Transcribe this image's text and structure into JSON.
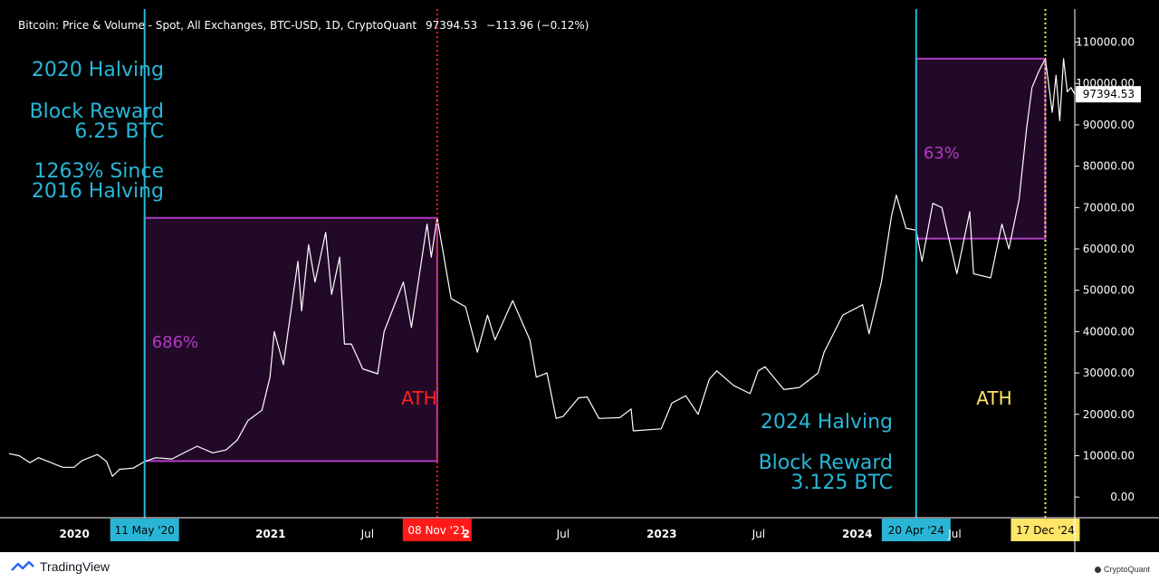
{
  "header": {
    "symbol": "Bitcoin: Price & Volume - Spot, All Exchanges, BTC-USD, 1D, CryptoQuant",
    "last": "97394.53",
    "change": "−113.96 (−0.12%)"
  },
  "chart_data": {
    "type": "line",
    "x_range": [
      "2019-09-01",
      "2025-02-10"
    ],
    "y_range": [
      -5000,
      118000
    ],
    "y_ticks": [
      {
        "value": 0,
        "label": "0.00"
      },
      {
        "value": 10000,
        "label": "10000.00"
      },
      {
        "value": 20000,
        "label": "20000.00"
      },
      {
        "value": 30000,
        "label": "30000.00"
      },
      {
        "value": 40000,
        "label": "40000.00"
      },
      {
        "value": 50000,
        "label": "50000.00"
      },
      {
        "value": 60000,
        "label": "60000.00"
      },
      {
        "value": 70000,
        "label": "70000.00"
      },
      {
        "value": 80000,
        "label": "80000.00"
      },
      {
        "value": 90000,
        "label": "90000.00"
      },
      {
        "value": 100000,
        "label": "100000.00"
      },
      {
        "value": 110000,
        "label": "110000.00"
      }
    ],
    "x_ticks": [
      {
        "date": "2020-01-01",
        "label": "2020",
        "bold": true
      },
      {
        "date": "2021-01-01",
        "label": "2021",
        "bold": true
      },
      {
        "date": "2021-07-01",
        "label": "Jul",
        "bold": false
      },
      {
        "date": "2022-01-01",
        "label": "2",
        "bold": true
      },
      {
        "date": "2022-07-01",
        "label": "Jul",
        "bold": false
      },
      {
        "date": "2023-01-01",
        "label": "2023",
        "bold": true
      },
      {
        "date": "2023-07-01",
        "label": "Jul",
        "bold": false
      },
      {
        "date": "2024-01-01",
        "label": "2024",
        "bold": true
      },
      {
        "date": "2024-07-01",
        "label": "Jul",
        "bold": false
      }
    ],
    "price_label": "97394.53",
    "price_value": 97394.53,
    "markers": [
      {
        "date": "2020-05-11",
        "label": "11 May '20",
        "color": "#29b6d6",
        "style": "solid"
      },
      {
        "date": "2021-11-08",
        "label": "08 Nov '21",
        "color": "#ff1a1a",
        "style": "dotted"
      },
      {
        "date": "2024-04-20",
        "label": "20 Apr '24",
        "color": "#29b6d6",
        "style": "solid"
      },
      {
        "date": "2024-12-17",
        "label": "17 Dec '24",
        "color": "#ffe566",
        "style": "dotted"
      }
    ],
    "ranges": [
      {
        "x0": "2020-05-11",
        "x1": "2021-11-08",
        "y0": 8700,
        "y1": 67500,
        "label": "686%"
      },
      {
        "x0": "2024-04-20",
        "x1": "2024-12-17",
        "y0": 62500,
        "y1": 106000,
        "label": "63%"
      }
    ],
    "annotations": [
      {
        "id": "h2020-title",
        "text": "2020 Halving",
        "color": "#29b6d6"
      },
      {
        "id": "h2020-reward1",
        "text": "Block Reward",
        "color": "#29b6d6"
      },
      {
        "id": "h2020-reward2",
        "text": "6.25 BTC",
        "color": "#29b6d6"
      },
      {
        "id": "h2020-since1",
        "text": "1263% Since",
        "color": "#29b6d6"
      },
      {
        "id": "h2020-since2",
        "text": "2016 Halving",
        "color": "#29b6d6"
      },
      {
        "id": "ath-2021",
        "text": "ATH",
        "color": "#ff2020"
      },
      {
        "id": "h2024-title",
        "text": "2024 Halving",
        "color": "#29b6d6"
      },
      {
        "id": "h2024-reward1",
        "text": "Block Reward",
        "color": "#29b6d6"
      },
      {
        "id": "h2024-reward2",
        "text": "3.125 BTC",
        "color": "#29b6d6"
      },
      {
        "id": "ath-2024",
        "text": "ATH",
        "color": "#ffe566"
      }
    ],
    "series": [
      {
        "values": [
          [
            "2019-09-01",
            10500
          ],
          [
            "2019-09-20",
            10000
          ],
          [
            "2019-10-10",
            8300
          ],
          [
            "2019-10-26",
            9500
          ],
          [
            "2019-11-15",
            8500
          ],
          [
            "2019-12-10",
            7200
          ],
          [
            "2019-12-31",
            7200
          ],
          [
            "2020-01-15",
            8800
          ],
          [
            "2020-02-13",
            10300
          ],
          [
            "2020-03-01",
            8600
          ],
          [
            "2020-03-12",
            5000
          ],
          [
            "2020-03-25",
            6700
          ],
          [
            "2020-04-20",
            7000
          ],
          [
            "2020-05-11",
            8600
          ],
          [
            "2020-06-01",
            9500
          ],
          [
            "2020-07-01",
            9200
          ],
          [
            "2020-07-28",
            11000
          ],
          [
            "2020-08-17",
            12300
          ],
          [
            "2020-09-15",
            10700
          ],
          [
            "2020-10-10",
            11400
          ],
          [
            "2020-10-31",
            13800
          ],
          [
            "2020-11-20",
            18500
          ],
          [
            "2020-12-16",
            21000
          ],
          [
            "2020-12-31",
            29000
          ],
          [
            "2021-01-08",
            40000
          ],
          [
            "2021-01-25",
            32000
          ],
          [
            "2021-02-21",
            57000
          ],
          [
            "2021-02-28",
            45000
          ],
          [
            "2021-03-13",
            61000
          ],
          [
            "2021-03-25",
            52000
          ],
          [
            "2021-04-14",
            64000
          ],
          [
            "2021-04-25",
            49000
          ],
          [
            "2021-05-10",
            58000
          ],
          [
            "2021-05-19",
            37000
          ],
          [
            "2021-06-01",
            37000
          ],
          [
            "2021-06-22",
            31000
          ],
          [
            "2021-07-20",
            29800
          ],
          [
            "2021-08-01",
            40000
          ],
          [
            "2021-09-06",
            52000
          ],
          [
            "2021-09-21",
            41000
          ],
          [
            "2021-10-20",
            66000
          ],
          [
            "2021-10-28",
            58000
          ],
          [
            "2021-11-08",
            67500
          ],
          [
            "2021-11-26",
            54000
          ],
          [
            "2021-12-04",
            48000
          ],
          [
            "2021-12-31",
            46000
          ],
          [
            "2022-01-22",
            35000
          ],
          [
            "2022-02-10",
            44000
          ],
          [
            "2022-02-24",
            38000
          ],
          [
            "2022-03-29",
            47500
          ],
          [
            "2022-04-30",
            38000
          ],
          [
            "2022-05-12",
            29000
          ],
          [
            "2022-06-01",
            30000
          ],
          [
            "2022-06-18",
            19000
          ],
          [
            "2022-07-01",
            19500
          ],
          [
            "2022-07-30",
            24000
          ],
          [
            "2022-08-15",
            24200
          ],
          [
            "2022-09-06",
            19000
          ],
          [
            "2022-10-15",
            19200
          ],
          [
            "2022-11-05",
            21300
          ],
          [
            "2022-11-09",
            16000
          ],
          [
            "2022-12-31",
            16500
          ],
          [
            "2023-01-20",
            22700
          ],
          [
            "2023-02-15",
            24500
          ],
          [
            "2023-03-10",
            20000
          ],
          [
            "2023-03-31",
            28500
          ],
          [
            "2023-04-14",
            30500
          ],
          [
            "2023-05-15",
            27000
          ],
          [
            "2023-06-15",
            25000
          ],
          [
            "2023-06-30",
            30500
          ],
          [
            "2023-07-13",
            31500
          ],
          [
            "2023-08-17",
            26000
          ],
          [
            "2023-09-15",
            26500
          ],
          [
            "2023-10-20",
            30000
          ],
          [
            "2023-10-31",
            35000
          ],
          [
            "2023-12-05",
            44000
          ],
          [
            "2024-01-11",
            46500
          ],
          [
            "2024-01-23",
            39500
          ],
          [
            "2024-02-15",
            52000
          ],
          [
            "2024-03-05",
            68000
          ],
          [
            "2024-03-14",
            73000
          ],
          [
            "2024-04-01",
            65000
          ],
          [
            "2024-04-20",
            64500
          ],
          [
            "2024-05-01",
            57000
          ],
          [
            "2024-05-21",
            71000
          ],
          [
            "2024-06-07",
            70000
          ],
          [
            "2024-07-05",
            54000
          ],
          [
            "2024-07-29",
            69000
          ],
          [
            "2024-08-05",
            54000
          ],
          [
            "2024-09-06",
            53000
          ],
          [
            "2024-09-27",
            66000
          ],
          [
            "2024-10-10",
            60000
          ],
          [
            "2024-10-29",
            72000
          ],
          [
            "2024-11-12",
            89000
          ],
          [
            "2024-11-22",
            99000
          ],
          [
            "2024-12-05",
            103000
          ],
          [
            "2024-12-17",
            106000
          ],
          [
            "2024-12-30",
            93000
          ],
          [
            "2025-01-06",
            102000
          ],
          [
            "2025-01-13",
            91000
          ],
          [
            "2025-01-20",
            106000
          ],
          [
            "2025-01-27",
            98000
          ],
          [
            "2025-02-03",
            99000
          ],
          [
            "2025-02-10",
            97394
          ]
        ]
      }
    ]
  }
}
